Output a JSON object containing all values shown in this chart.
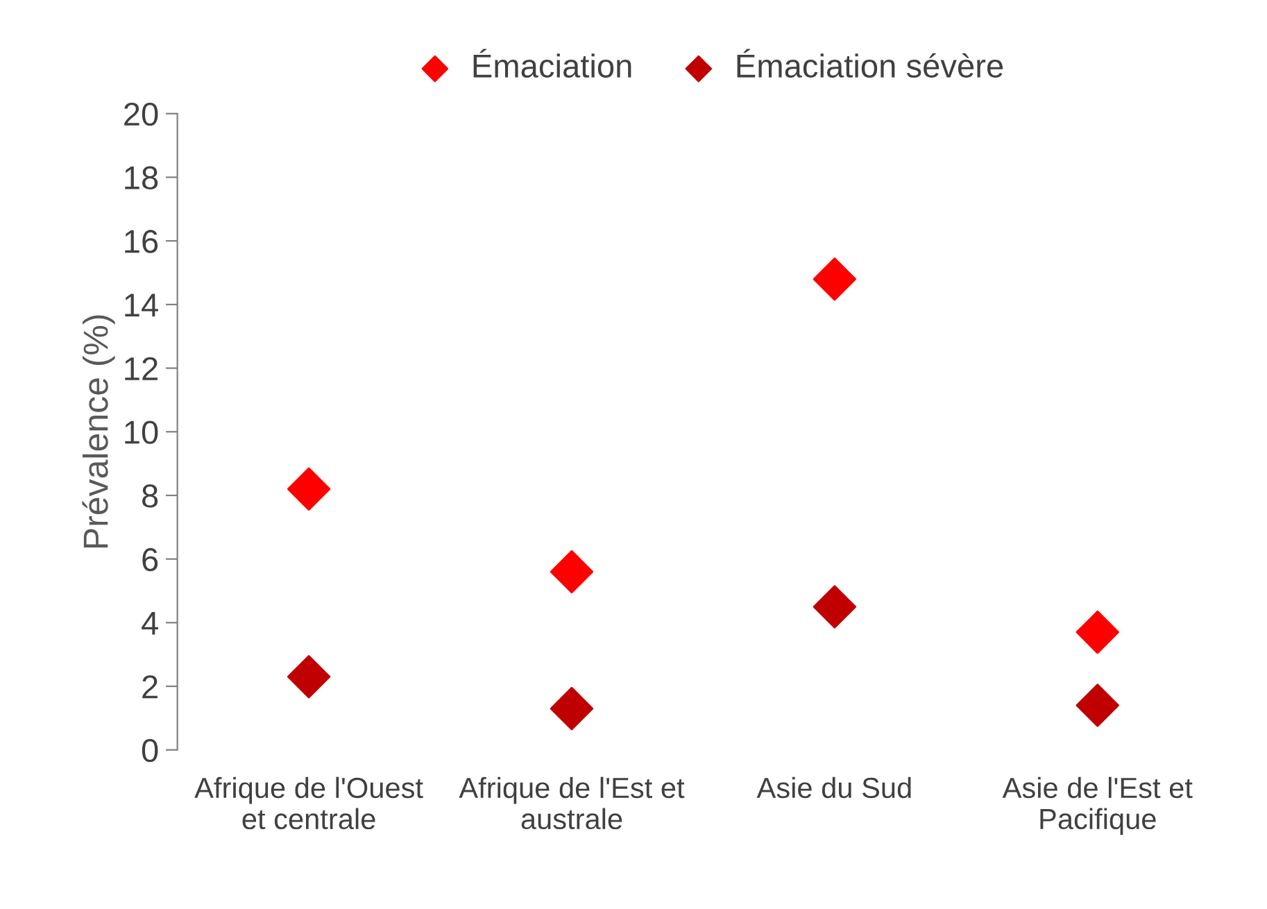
{
  "chart_data": {
    "type": "scatter",
    "ylabel": "Prévalence (%)",
    "categories": [
      "Afrique de l'Ouest et centrale",
      "Afrique de l'Est et australe",
      "Asie du Sud",
      "Asie de l'Est et Pacifique"
    ],
    "series": [
      {
        "name": "Émaciation",
        "color": "#ff0000",
        "values": [
          8.2,
          5.6,
          14.8,
          3.7
        ]
      },
      {
        "name": "Émaciation sévère",
        "color": "#c00000",
        "values": [
          2.3,
          1.3,
          4.5,
          1.4
        ]
      }
    ],
    "ylim": [
      0,
      20
    ],
    "yticks": [
      0,
      2,
      4,
      6,
      8,
      10,
      12,
      14,
      16,
      18,
      20
    ],
    "grid": false,
    "legend": "top",
    "marker": "diamond"
  }
}
